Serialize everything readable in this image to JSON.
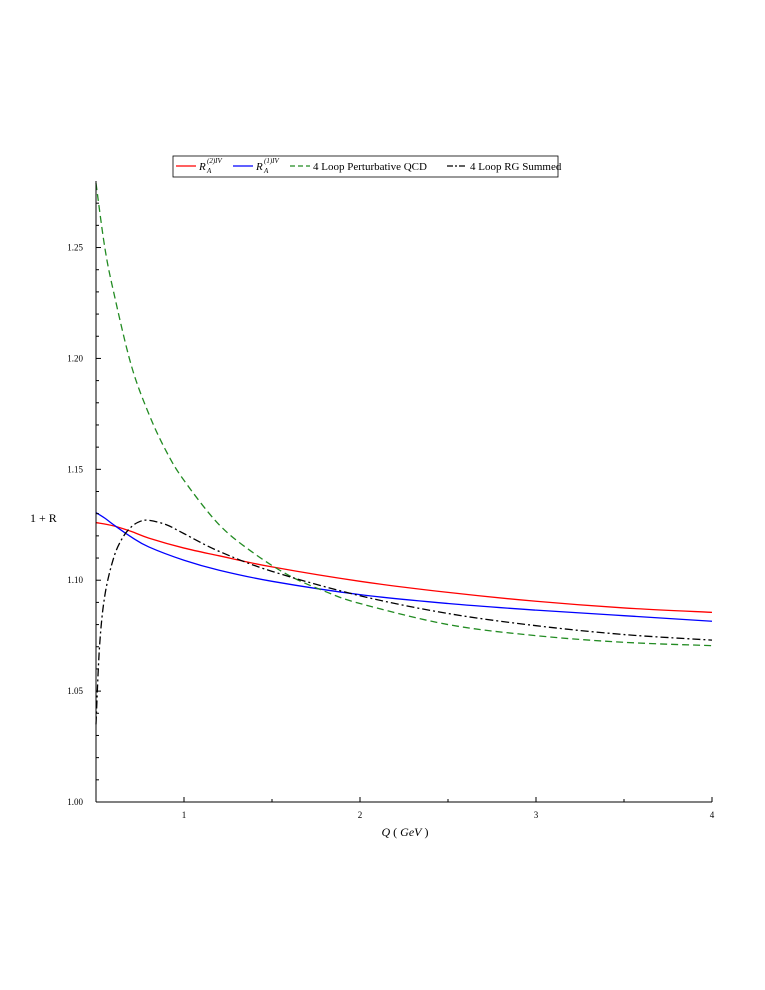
{
  "chart_data": {
    "type": "line",
    "xlabel_var": "Q",
    "xlabel_unit": "GeV",
    "ylabel": "1 + R",
    "xlim": [
      0.5,
      4
    ],
    "ylim": [
      1.0,
      1.28
    ],
    "xticks": [
      1,
      2,
      3,
      4
    ],
    "yticks": [
      1.0,
      1.05,
      1.1,
      1.15,
      1.2,
      1.25
    ],
    "ytick_labels": [
      "1.00",
      "1.05",
      "1.10",
      "1.15",
      "1.20",
      "1.25"
    ],
    "grid": false,
    "legend_position": "top",
    "series": [
      {
        "name": "R_A^{(2)IV}",
        "legend_main": "R",
        "legend_sub": "A",
        "legend_sup": "(2)IV",
        "color": "#ff0000",
        "dash": "solid",
        "x": [
          0.5,
          0.6,
          0.7,
          0.8,
          1.0,
          1.2,
          1.5,
          2.0,
          2.5,
          3.0,
          3.5,
          4.0
        ],
        "y": [
          1.126,
          1.1245,
          1.122,
          1.119,
          1.1145,
          1.111,
          1.106,
          1.0995,
          1.0945,
          1.0905,
          1.0875,
          1.0855
        ]
      },
      {
        "name": "R_A^{(1)IV}",
        "legend_main": "R",
        "legend_sub": "A",
        "legend_sup": "(1)IV",
        "color": "#0000ff",
        "dash": "solid",
        "x": [
          0.5,
          0.55,
          0.6,
          0.7,
          0.8,
          1.0,
          1.2,
          1.5,
          2.0,
          2.5,
          3.0,
          3.5,
          4.0
        ],
        "y": [
          1.1305,
          1.128,
          1.125,
          1.1195,
          1.115,
          1.109,
          1.1045,
          1.0995,
          1.0935,
          1.0895,
          1.0865,
          1.084,
          1.0815
        ]
      },
      {
        "name": "4 Loop Perturbative QCD",
        "color": "#228b22",
        "dash": "dashed",
        "x": [
          0.5,
          0.55,
          0.6,
          0.7,
          0.8,
          0.9,
          1.0,
          1.2,
          1.4,
          1.6,
          1.8,
          2.0,
          2.5,
          3.0,
          3.5,
          4.0
        ],
        "y": [
          1.279,
          1.25,
          1.23,
          1.197,
          1.175,
          1.158,
          1.145,
          1.125,
          1.112,
          1.102,
          1.095,
          1.0895,
          1.08,
          1.075,
          1.072,
          1.0705
        ]
      },
      {
        "name": "4 Loop RG Summed",
        "color": "#000000",
        "dash": "dashdot",
        "x": [
          0.5,
          0.52,
          0.55,
          0.6,
          0.65,
          0.7,
          0.75,
          0.8,
          0.9,
          1.0,
          1.2,
          1.5,
          2.0,
          2.5,
          3.0,
          3.5,
          4.0
        ],
        "y": [
          1.035,
          1.07,
          1.093,
          1.11,
          1.119,
          1.124,
          1.1265,
          1.127,
          1.125,
          1.121,
          1.113,
          1.104,
          1.093,
          1.085,
          1.0795,
          1.0755,
          1.073
        ]
      }
    ]
  }
}
